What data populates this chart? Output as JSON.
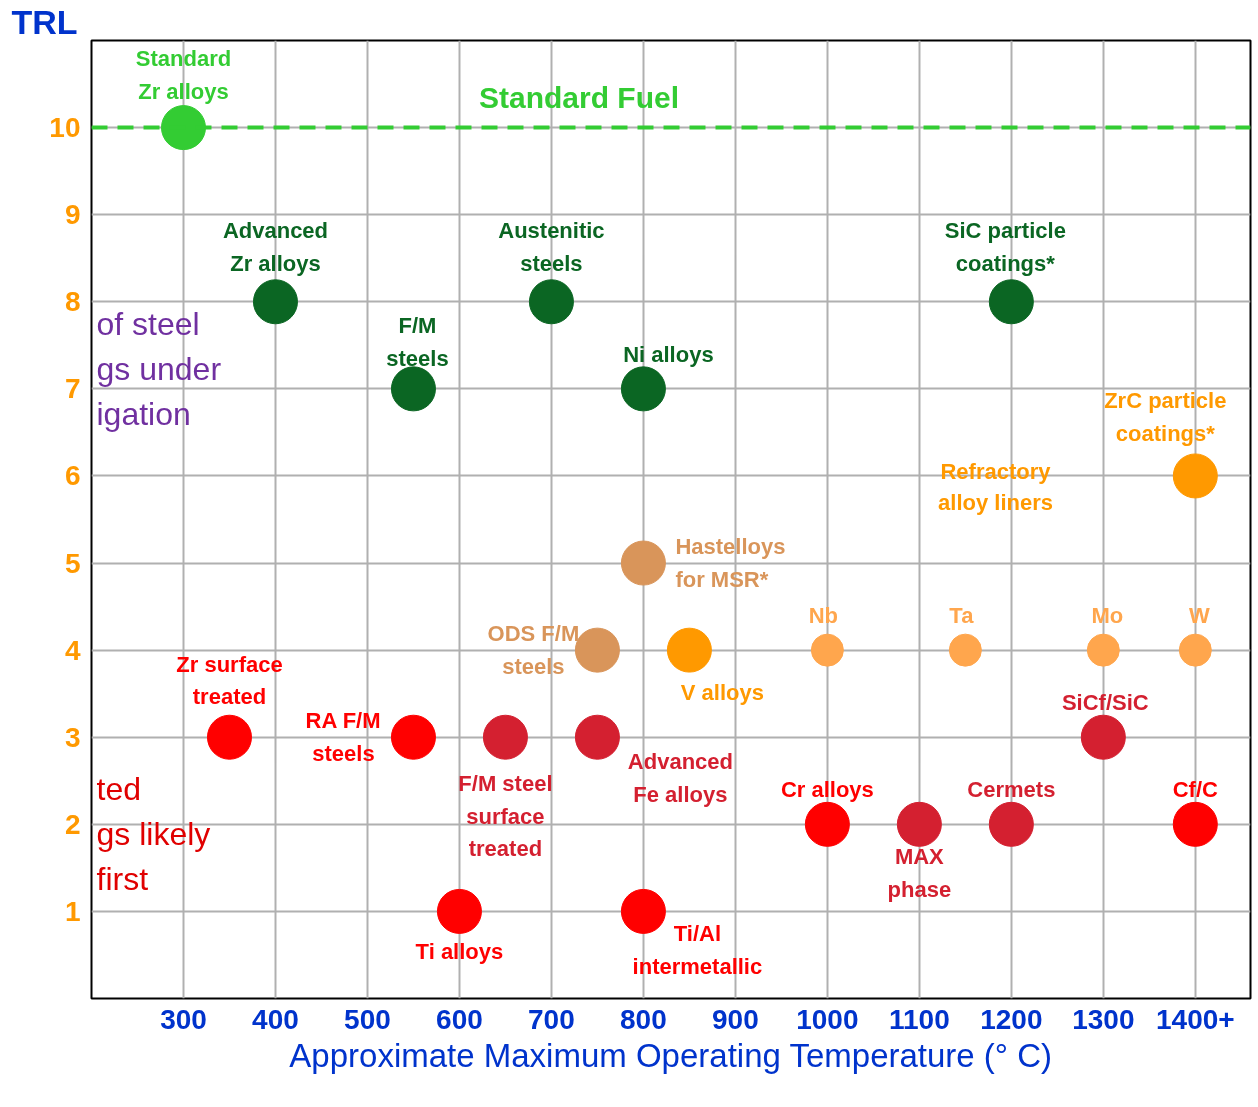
{
  "chart_data": {
    "type": "scatter",
    "xlabel": "Approximate Maximum Operating Temperature (° C)",
    "ylabel": "TRL",
    "xlim": [
      200,
      1460
    ],
    "ylim": [
      0,
      11
    ],
    "xticks": [
      300,
      400,
      500,
      600,
      700,
      800,
      900,
      1000,
      1100,
      1200,
      1300,
      {
        "value": 1400,
        "label": "1400+"
      }
    ],
    "yticks": [
      1,
      2,
      3,
      4,
      5,
      6,
      7,
      8,
      9,
      10
    ],
    "grid": true,
    "marker": "circle",
    "series": [
      {
        "color": "#33cc33",
        "x": [
          300
        ],
        "values": [
          10
        ]
      },
      {
        "color": "#0b6623",
        "x": [
          400,
          700,
          550,
          800,
          1200
        ],
        "values": [
          8,
          8,
          7,
          7,
          8
        ]
      },
      {
        "color": "#ff9900",
        "x": [
          1400,
          850
        ],
        "values": [
          6,
          4
        ]
      },
      {
        "color": "#d9955a",
        "x": [
          800,
          750
        ],
        "values": [
          5,
          4
        ]
      },
      {
        "color": "#ffa64d",
        "x": [
          1000,
          1150,
          1300,
          1400
        ],
        "values": [
          4,
          4,
          4,
          4
        ]
      },
      {
        "color": "#ff0000",
        "x": [
          350,
          550,
          1000,
          1400,
          600,
          800
        ],
        "values": [
          3,
          3,
          2,
          2,
          1,
          1
        ]
      },
      {
        "color": "#d42030",
        "x": [
          650,
          750,
          1100,
          1200,
          1300
        ],
        "values": [
          3,
          3,
          2,
          2,
          3
        ]
      }
    ],
    "ref_lines": [
      {
        "axis": "y",
        "value": 10,
        "label": "Standard Fuel",
        "color": "#33cc33",
        "line_style": "dashed"
      }
    ],
    "annotations": [
      {
        "text": "Standard\nZr alloys",
        "x": 300,
        "y": 10
      },
      {
        "text": "Advanced\nZr alloys",
        "x": 400,
        "y": 8
      },
      {
        "text": "Austenitic\nsteels",
        "x": 700,
        "y": 8
      },
      {
        "text": "F/M\nsteels",
        "x": 550,
        "y": 7
      },
      {
        "text": "Ni alloys",
        "x": 800,
        "y": 7
      },
      {
        "text": "SiC particle\ncoatings*",
        "x": 1200,
        "y": 8
      },
      {
        "text": "ZrC particle\ncoatings*",
        "x": 1400,
        "y": 6
      },
      "Refractory\nalloy liners",
      {
        "text": "Hastelloys\nfor MSR*",
        "x": 800,
        "y": 5
      },
      {
        "text": "ODS F/M\nsteels",
        "x": 750,
        "y": 4
      },
      {
        "text": "V alloys",
        "x": 850,
        "y": 4
      },
      {
        "text": "Nb",
        "x": 1000,
        "y": 4
      },
      {
        "text": "Ta",
        "x": 1150,
        "y": 4
      },
      {
        "text": "Mo",
        "x": 1300,
        "y": 4
      },
      {
        "text": "W",
        "x": 1400,
        "y": 4
      },
      {
        "text": "Zr surface\ntreated",
        "x": 350,
        "y": 3
      },
      {
        "text": "RA F/M\nsteels",
        "x": 550,
        "y": 3
      },
      {
        "text": "F/M steel\nsurface\ntreated",
        "x": 650,
        "y": 3
      },
      {
        "text": "Advanced\nFe alloys",
        "x": 750,
        "y": 3
      },
      {
        "text": "Cr alloys",
        "x": 1000,
        "y": 2
      },
      {
        "text": "MAX\nphase",
        "x": 1100,
        "y": 2
      },
      {
        "text": "Cermets",
        "x": 1200,
        "y": 2
      },
      {
        "text": "SiCf/SiC",
        "x": 1300,
        "y": 3
      },
      {
        "text": "Cf/C",
        "x": 1400,
        "y": 2
      },
      {
        "text": "Ti alloys",
        "x": 600,
        "y": 1
      },
      {
        "text": "Ti/Al\nintermetallic",
        "x": 800,
        "y": 1
      },
      "of steel\ngs under\nigation",
      "ted\ngs likely\nfirst"
    ]
  }
}
